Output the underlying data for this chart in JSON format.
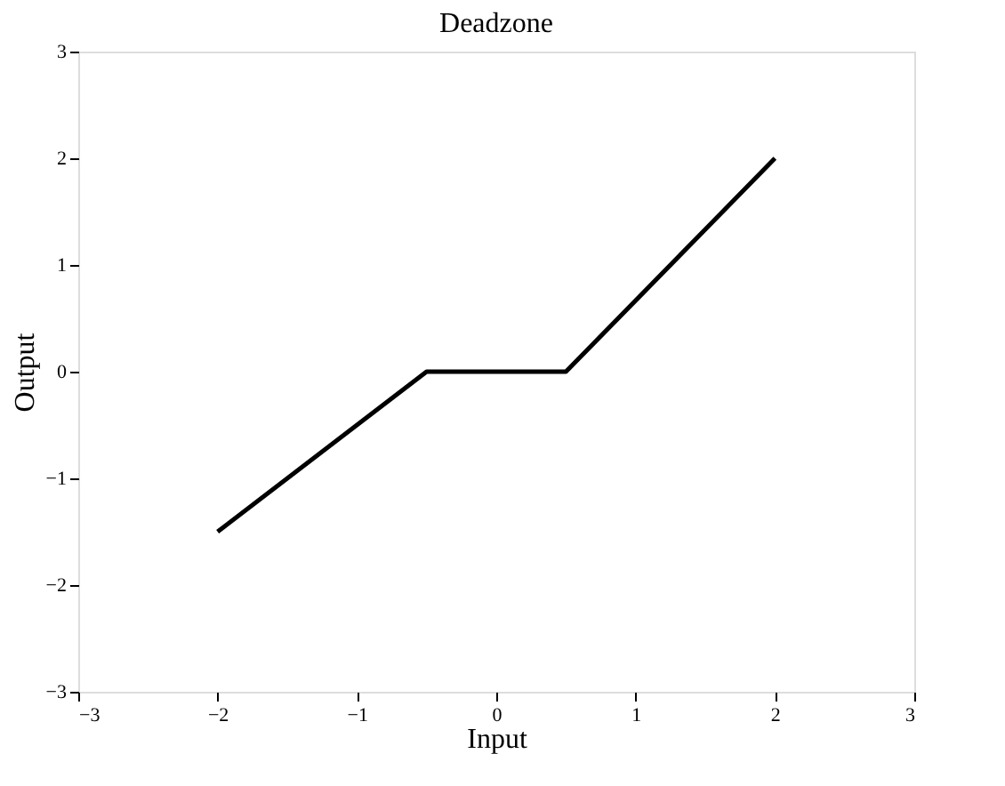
{
  "chart_data": {
    "type": "line",
    "title": "Deadzone",
    "xlabel": "Input",
    "ylabel": "Output",
    "x": [
      -2,
      -0.5,
      0.5,
      2
    ],
    "series": [
      {
        "color": "#000000",
        "values": [
          -1.5,
          0,
          0,
          2
        ]
      }
    ],
    "xlim": [
      -3,
      3
    ],
    "ylim": [
      -3,
      3
    ],
    "xticks": [
      -3,
      -2,
      -1,
      0,
      1,
      2,
      3
    ],
    "yticks": [
      -3,
      -2,
      -1,
      0,
      1,
      2,
      3
    ],
    "grid": false,
    "marker": "none",
    "line_style": "solid"
  }
}
